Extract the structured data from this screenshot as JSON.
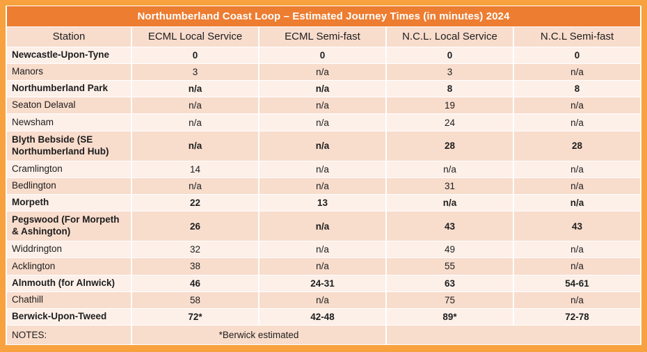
{
  "title": "Northumberland Coast Loop – Estimated Journey Times (in minutes) 2024",
  "colors": {
    "frame_orange": "#F7A23F",
    "title_bar_orange": "#ED7D31",
    "band_light": "#FDF0E9",
    "band_dark": "#F8DCCC",
    "grid_line": "#FFFFFF",
    "title_text": "#FFFFFF",
    "body_text": "#1D1D1D"
  },
  "table": {
    "columns": [
      "Station",
      "ECML Local Service",
      "ECML Semi-fast",
      "N.C.L. Local Service",
      "N.C.L Semi-fast"
    ],
    "rows": [
      {
        "station": "Newcastle-Upon-Tyne",
        "values": [
          "0",
          "0",
          "0",
          "0"
        ],
        "bold": true
      },
      {
        "station": "Manors",
        "values": [
          "3",
          "n/a",
          "3",
          "n/a"
        ],
        "bold": false
      },
      {
        "station": "Northumberland Park",
        "values": [
          "n/a",
          "n/a",
          "8",
          "8"
        ],
        "bold": true
      },
      {
        "station": "Seaton Delaval",
        "values": [
          "n/a",
          "n/a",
          "19",
          "n/a"
        ],
        "bold": false
      },
      {
        "station": "Newsham",
        "values": [
          "n/a",
          "n/a",
          "24",
          "n/a"
        ],
        "bold": false
      },
      {
        "station": "Blyth Bebside (SE Northumberland Hub)",
        "values": [
          "n/a",
          "n/a",
          "28",
          "28"
        ],
        "bold": true
      },
      {
        "station": "Cramlington",
        "values": [
          "14",
          "n/a",
          "n/a",
          "n/a"
        ],
        "bold": false
      },
      {
        "station": "Bedlington",
        "values": [
          "n/a",
          "n/a",
          "31",
          "n/a"
        ],
        "bold": false
      },
      {
        "station": "Morpeth",
        "values": [
          "22",
          "13",
          "n/a",
          "n/a"
        ],
        "bold": true
      },
      {
        "station": "Pegswood (For Morpeth & Ashington)",
        "values": [
          "26",
          "n/a",
          "43",
          "43"
        ],
        "bold": true
      },
      {
        "station": "Widdrington",
        "values": [
          "32",
          "n/a",
          "49",
          "n/a"
        ],
        "bold": false
      },
      {
        "station": "Acklington",
        "values": [
          "38",
          "n/a",
          "55",
          "n/a"
        ],
        "bold": false
      },
      {
        "station": "Alnmouth (for Alnwick)",
        "values": [
          "46",
          "24-31",
          "63",
          "54-61"
        ],
        "bold": true
      },
      {
        "station": "Chathill",
        "values": [
          "58",
          "n/a",
          "75",
          "n/a"
        ],
        "bold": false
      },
      {
        "station": "Berwick-Upon-Tweed",
        "values": [
          "72*",
          "42-48",
          "89*",
          "72-78"
        ],
        "bold": true
      }
    ],
    "notes": {
      "label": "NOTES:",
      "text": "*Berwick estimated"
    }
  },
  "chart_data": {
    "type": "table",
    "title": "Northumberland Coast Loop – Estimated Journey Times (in minutes) 2024",
    "columns": [
      "Station",
      "ECML Local Service",
      "ECML Semi-fast",
      "N.C.L. Local Service",
      "N.C.L Semi-fast"
    ],
    "rows": [
      [
        "Newcastle-Upon-Tyne",
        "0",
        "0",
        "0",
        "0"
      ],
      [
        "Manors",
        "3",
        "n/a",
        "3",
        "n/a"
      ],
      [
        "Northumberland Park",
        "n/a",
        "n/a",
        "8",
        "8"
      ],
      [
        "Seaton Delaval",
        "n/a",
        "n/a",
        "19",
        "n/a"
      ],
      [
        "Newsham",
        "n/a",
        "n/a",
        "24",
        "n/a"
      ],
      [
        "Blyth Bebside (SE Northumberland Hub)",
        "n/a",
        "n/a",
        "28",
        "28"
      ],
      [
        "Cramlington",
        "14",
        "n/a",
        "n/a",
        "n/a"
      ],
      [
        "Bedlington",
        "n/a",
        "n/a",
        "31",
        "n/a"
      ],
      [
        "Morpeth",
        "22",
        "13",
        "n/a",
        "n/a"
      ],
      [
        "Pegswood (For Morpeth & Ashington)",
        "26",
        "n/a",
        "43",
        "43"
      ],
      [
        "Widdrington",
        "32",
        "n/a",
        "49",
        "n/a"
      ],
      [
        "Acklington",
        "38",
        "n/a",
        "55",
        "n/a"
      ],
      [
        "Alnmouth (for Alnwick)",
        "46",
        "24-31",
        "63",
        "54-61"
      ],
      [
        "Chathill",
        "58",
        "n/a",
        "75",
        "n/a"
      ],
      [
        "Berwick-Upon-Tweed",
        "72*",
        "42-48",
        "89*",
        "72-78"
      ]
    ],
    "notes": "*Berwick estimated"
  }
}
